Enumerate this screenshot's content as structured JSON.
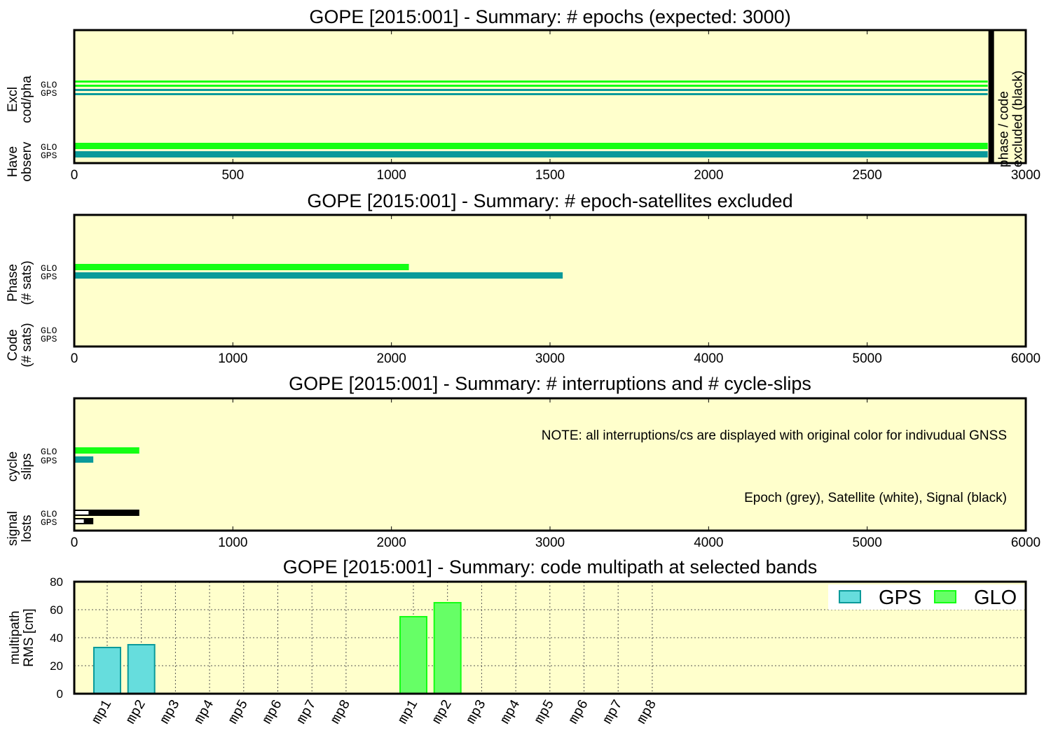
{
  "colors": {
    "background": "#ffffcc",
    "gps": "#0a9a9a",
    "glo": "#14ff14",
    "gps_fill": "#66dddd",
    "glo_fill": "#66ff66",
    "excluded": "#000000"
  },
  "chart_data": [
    {
      "type": "bar",
      "orientation": "horizontal",
      "title": "GOPE [2015:001] - Summary: # epochs (expected: 3000)",
      "xlim": [
        0,
        3000
      ],
      "xticks": [
        "0",
        "500",
        "1000",
        "1500",
        "2000",
        "2500",
        "3000"
      ],
      "grid": false,
      "groups": [
        {
          "label": [
            "Excl",
            "cod/pha"
          ],
          "systems": [
            "GLO",
            "GPS"
          ]
        },
        {
          "label": [
            "Have",
            "observ"
          ],
          "systems": [
            "GLO",
            "GPS"
          ]
        }
      ],
      "series": [
        {
          "group": 0,
          "system": "GLO",
          "value": 2880,
          "style": "thin-double"
        },
        {
          "group": 0,
          "system": "GPS",
          "value": 2880,
          "style": "thin-double"
        },
        {
          "group": 1,
          "system": "GLO",
          "value": 2880,
          "style": "thick"
        },
        {
          "group": 1,
          "system": "GPS",
          "value": 2880,
          "style": "thick"
        }
      ],
      "marker": {
        "x": 2880,
        "label": [
          "phase / code",
          "excluded (black)"
        ]
      }
    },
    {
      "type": "bar",
      "orientation": "horizontal",
      "title": "GOPE [2015:001] - Summary: # epoch-satellites excluded",
      "xlim": [
        0,
        6000
      ],
      "xticks": [
        "0",
        "1000",
        "2000",
        "3000",
        "4000",
        "5000",
        "6000"
      ],
      "grid": false,
      "groups": [
        {
          "label": [
            "Phase",
            "(# sats)"
          ],
          "systems": [
            "GLO",
            "GPS"
          ]
        },
        {
          "label": [
            "Code",
            "(# sats)"
          ],
          "systems": [
            "GLO",
            "GPS"
          ]
        }
      ],
      "series": [
        {
          "group": 0,
          "system": "GLO",
          "value": 2110
        },
        {
          "group": 0,
          "system": "GPS",
          "value": 3080
        },
        {
          "group": 1,
          "system": "GLO",
          "value": 0
        },
        {
          "group": 1,
          "system": "GPS",
          "value": 0
        }
      ]
    },
    {
      "type": "bar",
      "orientation": "horizontal",
      "title": "GOPE [2015:001] - Summary: # interruptions and # cycle-slips",
      "xlim": [
        0,
        6000
      ],
      "xticks": [
        "0",
        "1000",
        "2000",
        "3000",
        "4000",
        "5000",
        "6000"
      ],
      "grid": false,
      "groups": [
        {
          "label": [
            "cycle",
            "slips"
          ],
          "systems": [
            "GLO",
            "GPS"
          ]
        },
        {
          "label": [
            "signal",
            "losts"
          ],
          "systems": [
            "GLO",
            "GPS"
          ]
        }
      ],
      "series": [
        {
          "group": 0,
          "system": "GLO",
          "value": 410
        },
        {
          "group": 0,
          "system": "GPS",
          "value": 120
        },
        {
          "group": 1,
          "system": "GLO",
          "value": 410,
          "style": "losts",
          "satellite": 90
        },
        {
          "group": 1,
          "system": "GPS",
          "value": 120,
          "style": "losts",
          "satellite": 60
        }
      ],
      "annotations": [
        "NOTE: all interruptions/cs are displayed with original color for indivudual GNSS",
        "Epoch (grey), Satellite (white), Signal (black)"
      ]
    },
    {
      "type": "bar",
      "title": "GOPE [2015:001] - Summary: code multipath at selected bands",
      "ylabel": [
        "multipath",
        "RMS [cm]"
      ],
      "ylim": [
        0,
        80
      ],
      "yticks": [
        "0",
        "20",
        "40",
        "60",
        "80"
      ],
      "grid": true,
      "legend_position": "top-right",
      "categories": [
        "mp1",
        "mp2",
        "mp3",
        "mp4",
        "mp5",
        "mp6",
        "mp7",
        "mp8",
        "mp1",
        "mp2",
        "mp3",
        "mp4",
        "mp5",
        "mp6",
        "mp7",
        "mp8"
      ],
      "series": [
        {
          "name": "GPS",
          "values": [
            33,
            35,
            null,
            null,
            null,
            null,
            null,
            null,
            null,
            null,
            null,
            null,
            null,
            null,
            null,
            null
          ]
        },
        {
          "name": "GLO",
          "values": [
            null,
            null,
            null,
            null,
            null,
            null,
            null,
            null,
            55,
            65,
            null,
            null,
            null,
            null,
            null,
            null
          ]
        }
      ]
    }
  ]
}
